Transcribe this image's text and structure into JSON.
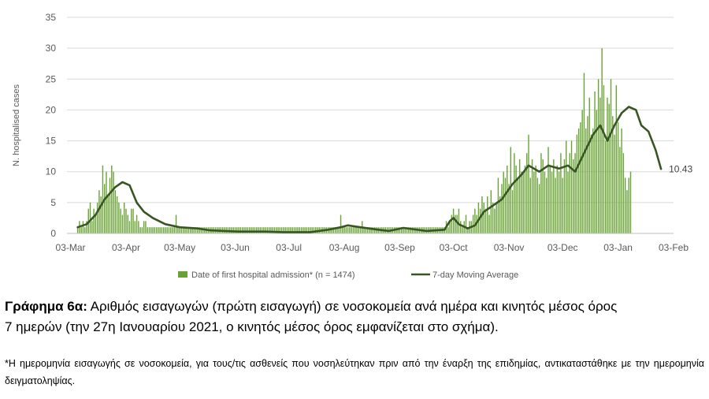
{
  "chart_data": {
    "type": "bar",
    "x_start": "2020-03-01",
    "x_end": "2021-02-03",
    "ylabel": "N. hospitalised cases",
    "ylim": [
      0,
      35
    ],
    "yticks": [
      0,
      5,
      10,
      15,
      20,
      25,
      30,
      35
    ],
    "xticks": [
      "03-Mar",
      "03-Apr",
      "03-May",
      "03-Jun",
      "03-Jul",
      "03-Aug",
      "03-Sep",
      "03-Oct",
      "03-Nov",
      "03-Dec",
      "03-Jan",
      "03-Feb"
    ],
    "grid": "horizontal",
    "legend_position": "bottom",
    "colors": {
      "bars": "#6aa335",
      "line": "#375623",
      "grid": "#d9d9d9",
      "axis": "#bfbfbf"
    },
    "series": [
      {
        "name": "Date of first hospital admission* (n = 1474)",
        "kind": "bar",
        "anchor": "2020-03-07",
        "values": [
          1,
          2,
          1,
          2,
          1,
          2,
          4,
          5,
          2,
          4,
          3,
          5,
          7,
          6,
          11,
          8,
          10,
          6,
          9,
          11,
          10,
          7,
          6,
          5,
          4,
          3,
          5,
          4,
          3,
          2,
          4,
          4,
          2,
          3,
          2,
          1,
          1,
          2,
          2,
          1,
          1,
          1,
          1,
          1,
          1,
          1,
          1,
          1,
          1,
          1,
          1,
          1,
          1,
          1,
          1,
          3,
          1,
          1,
          1,
          1,
          1,
          1,
          1,
          1,
          1,
          1,
          1,
          1,
          1,
          1,
          1,
          1,
          1,
          1,
          1,
          1,
          1,
          1,
          1,
          1,
          1,
          1,
          1,
          1,
          1,
          1,
          1,
          1,
          1,
          1,
          1,
          1,
          1,
          1,
          1,
          1,
          1,
          1,
          1,
          1,
          1,
          1,
          1,
          1,
          1,
          1,
          1,
          1,
          1,
          1,
          1,
          1,
          1,
          1,
          1,
          1,
          1,
          1,
          1,
          1,
          1,
          1,
          1,
          1,
          1,
          1,
          1,
          1,
          1,
          1,
          1,
          1,
          1,
          1,
          1,
          1,
          1,
          1,
          1,
          1,
          1,
          1,
          1,
          1,
          1,
          1,
          1,
          3,
          1,
          1,
          1,
          1,
          1,
          1,
          1,
          1,
          1,
          1,
          1,
          2,
          1,
          1,
          1,
          1,
          1,
          1,
          1,
          1,
          1,
          1,
          1,
          1,
          1,
          1,
          1,
          1,
          1,
          1,
          1,
          1,
          1,
          1,
          1,
          1,
          1,
          1,
          1,
          1,
          1,
          1,
          1,
          1,
          1,
          1,
          1,
          1,
          1,
          1,
          1,
          1,
          1,
          1,
          1,
          1,
          1,
          1,
          2,
          1,
          2,
          3,
          4,
          3,
          3,
          4,
          2,
          1,
          2,
          3,
          1,
          2,
          2,
          3,
          4,
          3,
          5,
          4,
          6,
          5,
          4,
          6,
          3,
          7,
          5,
          4,
          5,
          9,
          6,
          8,
          10,
          9,
          11,
          8,
          14,
          7,
          13,
          11,
          9,
          12,
          10,
          10,
          11,
          13,
          16,
          9,
          12,
          10,
          11,
          9,
          8,
          13,
          12,
          10,
          9,
          14,
          11,
          10,
          12,
          9,
          11,
          10,
          13,
          9,
          12,
          15,
          10,
          13,
          15,
          12,
          13,
          16,
          17,
          18,
          20,
          26,
          17,
          19,
          22,
          16,
          17,
          23,
          20,
          25,
          22,
          30,
          24,
          15,
          22,
          21,
          25,
          19,
          16,
          24,
          18,
          14,
          17,
          13,
          9,
          7,
          9,
          10
        ]
      },
      {
        "name": "7-day Moving Average",
        "kind": "line",
        "points": [
          [
            "2020-03-07",
            1.0
          ],
          [
            "2020-03-12",
            1.5
          ],
          [
            "2020-03-17",
            3.0
          ],
          [
            "2020-03-22",
            5.5
          ],
          [
            "2020-03-28",
            7.5
          ],
          [
            "2020-04-01",
            8.3
          ],
          [
            "2020-04-05",
            7.8
          ],
          [
            "2020-04-09",
            5.0
          ],
          [
            "2020-04-13",
            3.5
          ],
          [
            "2020-04-18",
            2.5
          ],
          [
            "2020-04-25",
            1.5
          ],
          [
            "2020-05-03",
            1.0
          ],
          [
            "2020-05-13",
            0.8
          ],
          [
            "2020-05-20",
            0.5
          ],
          [
            "2020-05-28",
            0.4
          ],
          [
            "2020-06-05",
            0.3
          ],
          [
            "2020-06-20",
            0.3
          ],
          [
            "2020-06-30",
            0.2
          ],
          [
            "2020-07-15",
            0.2
          ],
          [
            "2020-07-25",
            0.6
          ],
          [
            "2020-08-01",
            1.0
          ],
          [
            "2020-08-05",
            1.3
          ],
          [
            "2020-08-12",
            1.0
          ],
          [
            "2020-08-22",
            0.6
          ],
          [
            "2020-08-28",
            0.4
          ],
          [
            "2020-09-05",
            0.9
          ],
          [
            "2020-09-10",
            0.7
          ],
          [
            "2020-09-18",
            0.4
          ],
          [
            "2020-09-28",
            0.6
          ],
          [
            "2020-10-01",
            2.0
          ],
          [
            "2020-10-03",
            2.5
          ],
          [
            "2020-10-06",
            1.5
          ],
          [
            "2020-10-11",
            0.8
          ],
          [
            "2020-10-15",
            1.3
          ],
          [
            "2020-10-20",
            3.5
          ],
          [
            "2020-10-25",
            4.5
          ],
          [
            "2020-10-30",
            5.5
          ],
          [
            "2020-11-05",
            8.0
          ],
          [
            "2020-11-10",
            9.5
          ],
          [
            "2020-11-14",
            11.0
          ],
          [
            "2020-11-20",
            10.0
          ],
          [
            "2020-11-25",
            11.0
          ],
          [
            "2020-12-01",
            10.5
          ],
          [
            "2020-12-06",
            11.0
          ],
          [
            "2020-12-10",
            10.0
          ],
          [
            "2020-12-15",
            13.0
          ],
          [
            "2020-12-20",
            16.0
          ],
          [
            "2020-12-24",
            17.5
          ],
          [
            "2020-12-28",
            15.0
          ],
          [
            "2021-01-01",
            17.5
          ],
          [
            "2021-01-05",
            19.5
          ],
          [
            "2021-01-09",
            20.5
          ],
          [
            "2021-01-13",
            20.0
          ],
          [
            "2021-01-16",
            17.5
          ],
          [
            "2021-01-20",
            16.5
          ],
          [
            "2021-01-24",
            13.5
          ],
          [
            "2021-01-27",
            10.43
          ]
        ]
      }
    ],
    "annotations": [
      "10.43"
    ]
  },
  "caption": {
    "label": "Γράφημα 6α:",
    "text_line1": " Αριθμός εισαγωγών (πρώτη εισαγωγή) σε νοσοκομεία ανά ημέρα και κινητός μέσος όρος",
    "text_line2": "7 ημερών (την 27η Ιανουαρίου 2021, ο κινητός μέσος όρος εμφανίζεται στο σχήμα)."
  },
  "footnote": "*Η ημερομηνία εισαγωγής σε νοσοκομεία, για τους/τις ασθενείς που νοσηλεύτηκαν πριν από την έναρξη της επιδημίας, αντικαταστάθηκε με την ημερομηνία δειγματοληψίας."
}
